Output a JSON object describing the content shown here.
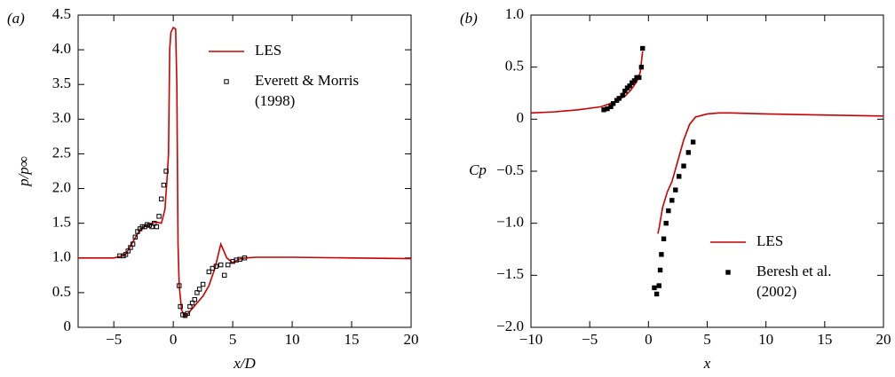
{
  "chart_data": [
    {
      "type": "line",
      "panel_label": "(a)",
      "xlabel": "x/D",
      "ylabel": "p/p∞",
      "xlim": [
        -8,
        20
      ],
      "ylim": [
        0,
        4.5
      ],
      "xticks": [
        {
          "value": -5,
          "label": "−5"
        },
        0,
        5,
        10,
        15,
        20
      ],
      "yticks": [
        0,
        0.5,
        {
          "value": 1,
          "label": "1.0"
        },
        1.5,
        {
          "value": 2,
          "label": "2.0"
        },
        2.5,
        {
          "value": 3,
          "label": "3.0"
        },
        3.5,
        {
          "value": 4,
          "label": "4.0"
        },
        4.5
      ],
      "legend": "upper right",
      "series": [
        {
          "name": "LES",
          "color": "#cc0000",
          "style": "line",
          "x": [
            -8,
            -5,
            -4.5,
            -4,
            -3.5,
            -3,
            -2.5,
            -2,
            -1.5,
            -1,
            -0.7,
            -0.5,
            -0.4,
            -0.3,
            -0.2,
            0,
            0.2,
            0.3,
            0.4,
            0.5,
            0.7,
            1,
            1.5,
            2,
            2.5,
            3,
            3.5,
            4,
            4.5,
            5,
            5.5,
            6,
            7,
            10,
            15,
            20
          ],
          "values": [
            1,
            1,
            1.02,
            1.05,
            1.2,
            1.35,
            1.45,
            1.48,
            1.52,
            1.5,
            1.7,
            2.2,
            2.5,
            4.0,
            4.25,
            4.32,
            4.3,
            3.5,
            1.2,
            0.6,
            0.25,
            0.15,
            0.25,
            0.35,
            0.45,
            0.6,
            0.85,
            1.2,
            1.0,
            0.93,
            0.98,
            1.0,
            1.01,
            1.01,
            1.0,
            0.99
          ]
        },
        {
          "name": "Everett & Morris",
          "note": "(1998)",
          "color": "#000000",
          "style": "open-square",
          "x": [
            -4.5,
            -4.2,
            -4,
            -3.8,
            -3.6,
            -3.4,
            -3.2,
            -3,
            -2.8,
            -2.6,
            -2.4,
            -2.2,
            -2,
            -1.8,
            -1.6,
            -1.4,
            -1.2,
            -1,
            -0.8,
            -0.6,
            0.5,
            0.6,
            0.8,
            1,
            1.2,
            1.4,
            1.6,
            1.8,
            2,
            2.2,
            2.5,
            3,
            3.3,
            3.6,
            4,
            4.3,
            4.6,
            5,
            5.3,
            5.6,
            6
          ],
          "values": [
            1.03,
            1.03,
            1.05,
            1.1,
            1.15,
            1.2,
            1.3,
            1.38,
            1.42,
            1.45,
            1.45,
            1.48,
            1.47,
            1.45,
            1.5,
            1.45,
            1.6,
            1.85,
            2.05,
            2.25,
            0.6,
            0.3,
            0.18,
            0.17,
            0.2,
            0.3,
            0.35,
            0.4,
            0.5,
            0.55,
            0.62,
            0.8,
            0.85,
            0.88,
            0.9,
            0.75,
            0.9,
            0.95,
            0.97,
            0.98,
            1.0
          ]
        }
      ]
    },
    {
      "type": "line",
      "panel_label": "(b)",
      "xlabel": "x",
      "ylabel": "Cp",
      "xlim": [
        -10,
        20
      ],
      "ylim": [
        -2,
        1
      ],
      "xticks": [
        {
          "value": -10,
          "label": "−10"
        },
        {
          "value": -5,
          "label": "−5"
        },
        0,
        5,
        10,
        15,
        20
      ],
      "yticks": [
        {
          "value": -2,
          "label": "−2.0"
        },
        {
          "value": -1.5,
          "label": "−1.5"
        },
        {
          "value": -1,
          "label": "−1.0"
        },
        {
          "value": -0.5,
          "label": "−0.5"
        },
        0,
        0.5,
        {
          "value": 1,
          "label": "1.0"
        }
      ],
      "legend": "lower right",
      "series": [
        {
          "name": "LES",
          "color": "#cc0000",
          "style": "line",
          "x": [
            -10,
            -8,
            -6,
            -4,
            -3,
            -2,
            -1.5,
            -1,
            -0.7,
            -0.5,
            null,
            0.8,
            0.9,
            1.2,
            1.6,
            2,
            2.5,
            3,
            3.5,
            4,
            5,
            6,
            7,
            10,
            15,
            20
          ],
          "values": [
            0.06,
            0.07,
            0.09,
            0.12,
            0.16,
            0.22,
            0.28,
            0.36,
            0.45,
            0.65,
            null,
            -1.1,
            -1.05,
            -0.85,
            -0.7,
            -0.6,
            -0.4,
            -0.2,
            -0.05,
            0.02,
            0.05,
            0.06,
            0.06,
            0.05,
            0.04,
            0.03
          ]
        },
        {
          "name": "Beresh et al.",
          "note": "(2002)",
          "color": "#000000",
          "style": "filled-square",
          "x": [
            -3.8,
            -3.5,
            -3.2,
            -3,
            -2.7,
            -2.5,
            -2.2,
            -2,
            -1.8,
            -1.6,
            -1.4,
            -1.2,
            -1,
            -0.8,
            -0.6,
            -0.5,
            0.5,
            0.7,
            0.9,
            1.0,
            1.1,
            1.3,
            1.5,
            1.7,
            2,
            2.3,
            2.6,
            3,
            3.4,
            3.8
          ],
          "values": [
            0.09,
            0.1,
            0.12,
            0.15,
            0.18,
            0.2,
            0.23,
            0.27,
            0.3,
            0.32,
            0.35,
            0.37,
            0.4,
            0.4,
            0.5,
            0.68,
            -1.62,
            -1.68,
            -1.6,
            -1.45,
            -1.3,
            -1.15,
            -1.0,
            -0.88,
            -0.78,
            -0.68,
            -0.55,
            -0.45,
            -0.32,
            -0.22
          ]
        }
      ]
    }
  ]
}
